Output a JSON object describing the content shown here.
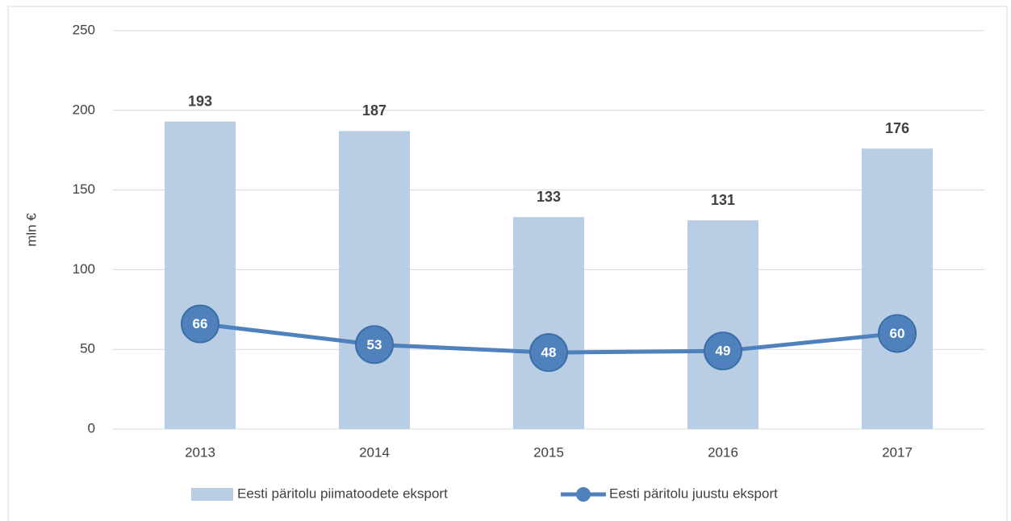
{
  "chart_data": {
    "type": "combo",
    "y_label": "mln €",
    "categories": [
      "2013",
      "2014",
      "2015",
      "2016",
      "2017"
    ],
    "series": [
      {
        "name": "Eesti päritolu piimatoodete eksport",
        "type": "bar",
        "color": "#b9cde5",
        "values": [
          193,
          187,
          133,
          131,
          176
        ]
      },
      {
        "name": "Eesti päritolu juustu eksport",
        "type": "line",
        "color": "#4f81bd",
        "values": [
          66,
          53,
          48,
          49,
          60
        ]
      }
    ],
    "ylim": [
      0,
      250
    ],
    "yticks": [
      0,
      50,
      100,
      150,
      200,
      250
    ],
    "grid": true,
    "legend": "bottom"
  }
}
